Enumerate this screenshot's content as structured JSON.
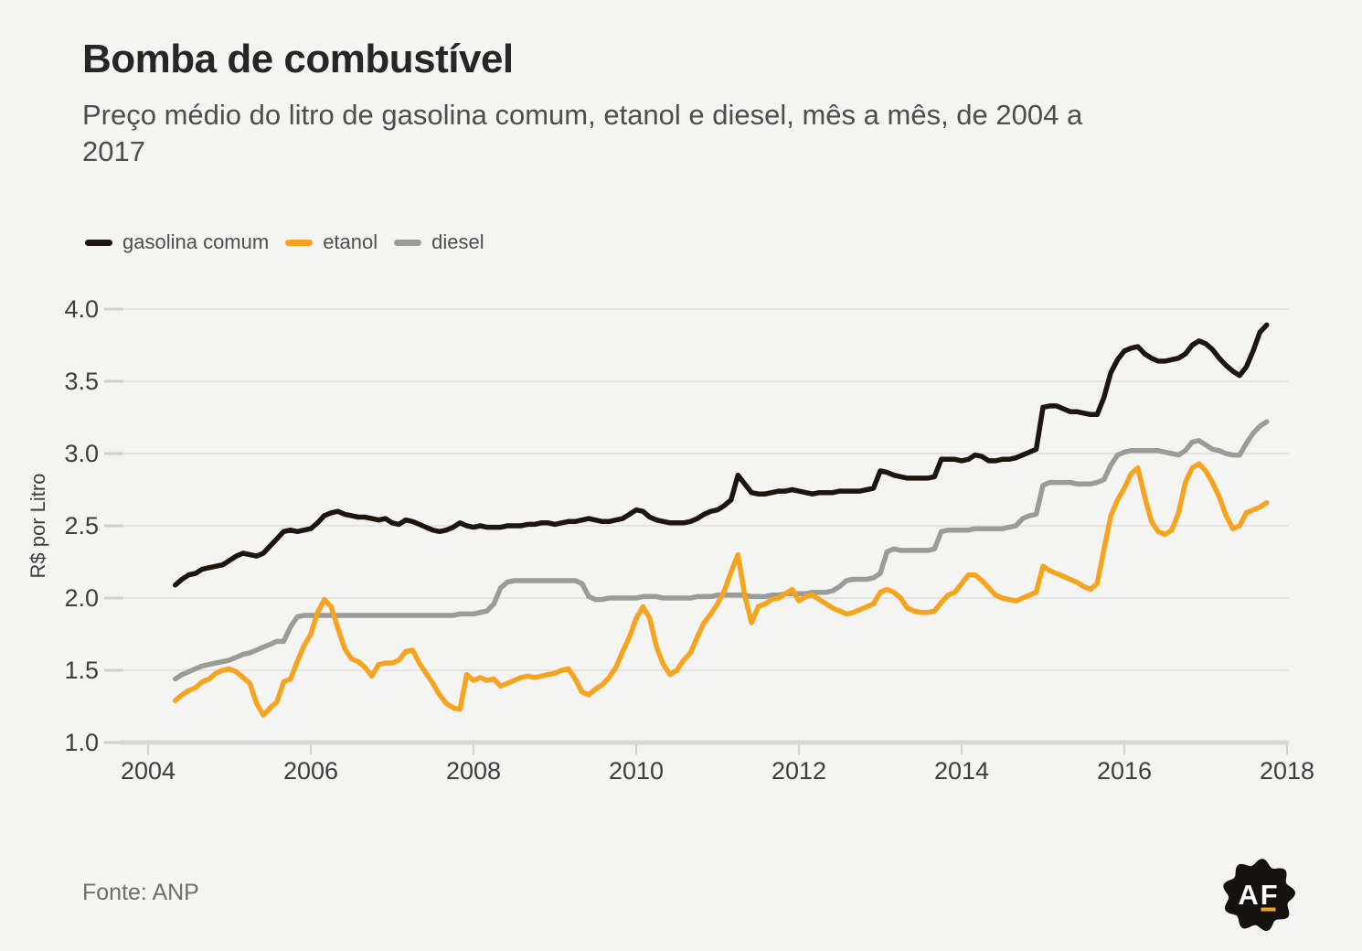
{
  "header": {
    "title": "Bomba de combustível",
    "subtitle": "Preço médio do litro de gasolina comum, etanol e diesel, mês a mês, de 2004 a 2017"
  },
  "legend": [
    {
      "label": "gasolina comum",
      "color": "#1c1510"
    },
    {
      "label": "etanol",
      "color": "#f6a41f"
    },
    {
      "label": "diesel",
      "color": "#9b9b99"
    }
  ],
  "footer": {
    "source": "Fonte: ANP",
    "logo_text": "AF",
    "logo_badge_color": "#16120f",
    "logo_accent_color": "#f6a41f"
  },
  "colors": {
    "background": "#f4f4f2",
    "gridline": "#e4e4e2",
    "axis": "#d8d8d6",
    "tick": "#cfcfcd",
    "tick_label": "#3e3e3e"
  },
  "chart_data": {
    "type": "line",
    "title": "Bomba de combustível",
    "xlabel": "",
    "ylabel": "R$ por Litro",
    "grid": true,
    "legend_position": "top-left",
    "ylim": [
      1.0,
      4.0
    ],
    "y_ticks": [
      1.0,
      1.5,
      2.0,
      2.5,
      3.0,
      3.5,
      4.0
    ],
    "x_ticks": [
      2004,
      2006,
      2008,
      2010,
      2012,
      2014,
      2016,
      2018
    ],
    "frequency": "monthly",
    "x_start_year": 2004,
    "x_start_month": 5,
    "series": [
      {
        "name": "gasolina comum",
        "color": "#1c1510",
        "values": [
          2.09,
          2.13,
          2.16,
          2.17,
          2.2,
          2.21,
          2.22,
          2.23,
          2.26,
          2.29,
          2.31,
          2.3,
          2.29,
          2.31,
          2.36,
          2.41,
          2.46,
          2.47,
          2.46,
          2.47,
          2.48,
          2.52,
          2.57,
          2.59,
          2.6,
          2.58,
          2.57,
          2.56,
          2.56,
          2.55,
          2.54,
          2.55,
          2.52,
          2.51,
          2.54,
          2.53,
          2.51,
          2.49,
          2.47,
          2.46,
          2.47,
          2.49,
          2.52,
          2.5,
          2.49,
          2.5,
          2.49,
          2.49,
          2.49,
          2.5,
          2.5,
          2.5,
          2.51,
          2.51,
          2.52,
          2.52,
          2.51,
          2.52,
          2.53,
          2.53,
          2.54,
          2.55,
          2.54,
          2.53,
          2.53,
          2.54,
          2.55,
          2.58,
          2.61,
          2.6,
          2.56,
          2.54,
          2.53,
          2.52,
          2.52,
          2.52,
          2.53,
          2.55,
          2.58,
          2.6,
          2.61,
          2.64,
          2.68,
          2.85,
          2.79,
          2.73,
          2.72,
          2.72,
          2.73,
          2.74,
          2.74,
          2.75,
          2.74,
          2.73,
          2.72,
          2.73,
          2.73,
          2.73,
          2.74,
          2.74,
          2.74,
          2.74,
          2.75,
          2.76,
          2.88,
          2.87,
          2.85,
          2.84,
          2.83,
          2.83,
          2.83,
          2.83,
          2.84,
          2.96,
          2.96,
          2.96,
          2.95,
          2.96,
          2.99,
          2.98,
          2.95,
          2.95,
          2.96,
          2.96,
          2.97,
          2.99,
          3.01,
          3.03,
          3.32,
          3.33,
          3.33,
          3.31,
          3.29,
          3.29,
          3.28,
          3.27,
          3.27,
          3.39,
          3.56,
          3.65,
          3.71,
          3.73,
          3.74,
          3.69,
          3.66,
          3.64,
          3.64,
          3.65,
          3.66,
          3.69,
          3.75,
          3.78,
          3.76,
          3.72,
          3.66,
          3.61,
          3.57,
          3.54,
          3.6,
          3.71,
          3.84,
          3.89
        ]
      },
      {
        "name": "etanol",
        "color": "#f6a41f",
        "values": [
          1.29,
          1.33,
          1.36,
          1.38,
          1.42,
          1.44,
          1.48,
          1.5,
          1.51,
          1.49,
          1.45,
          1.41,
          1.27,
          1.19,
          1.24,
          1.28,
          1.42,
          1.44,
          1.56,
          1.67,
          1.75,
          1.9,
          1.99,
          1.94,
          1.79,
          1.65,
          1.58,
          1.56,
          1.52,
          1.46,
          1.54,
          1.55,
          1.55,
          1.57,
          1.63,
          1.64,
          1.55,
          1.48,
          1.41,
          1.33,
          1.27,
          1.24,
          1.23,
          1.47,
          1.43,
          1.45,
          1.43,
          1.44,
          1.39,
          1.41,
          1.43,
          1.45,
          1.46,
          1.45,
          1.46,
          1.47,
          1.48,
          1.5,
          1.51,
          1.44,
          1.35,
          1.33,
          1.37,
          1.4,
          1.45,
          1.52,
          1.63,
          1.73,
          1.86,
          1.94,
          1.86,
          1.66,
          1.54,
          1.47,
          1.5,
          1.57,
          1.62,
          1.73,
          1.83,
          1.89,
          1.96,
          2.05,
          2.18,
          2.3,
          2.02,
          1.83,
          1.94,
          1.96,
          1.99,
          2.0,
          2.03,
          2.06,
          1.98,
          2.01,
          2.02,
          1.99,
          1.96,
          1.93,
          1.91,
          1.89,
          1.9,
          1.92,
          1.94,
          1.96,
          2.04,
          2.06,
          2.04,
          2.0,
          1.93,
          1.91,
          1.9,
          1.9,
          1.91,
          1.97,
          2.02,
          2.04,
          2.1,
          2.16,
          2.16,
          2.12,
          2.07,
          2.02,
          2.0,
          1.99,
          1.98,
          2.0,
          2.02,
          2.04,
          2.22,
          2.19,
          2.17,
          2.15,
          2.13,
          2.11,
          2.08,
          2.06,
          2.1,
          2.34,
          2.57,
          2.68,
          2.76,
          2.86,
          2.9,
          2.7,
          2.53,
          2.46,
          2.44,
          2.47,
          2.59,
          2.8,
          2.9,
          2.93,
          2.88,
          2.8,
          2.7,
          2.57,
          2.48,
          2.5,
          2.59,
          2.61,
          2.63,
          2.66
        ]
      },
      {
        "name": "diesel",
        "color": "#9b9b99",
        "values": [
          1.44,
          1.47,
          1.49,
          1.51,
          1.53,
          1.54,
          1.55,
          1.56,
          1.57,
          1.59,
          1.61,
          1.62,
          1.64,
          1.66,
          1.68,
          1.7,
          1.7,
          1.8,
          1.87,
          1.88,
          1.88,
          1.88,
          1.88,
          1.88,
          1.88,
          1.88,
          1.88,
          1.88,
          1.88,
          1.88,
          1.88,
          1.88,
          1.88,
          1.88,
          1.88,
          1.88,
          1.88,
          1.88,
          1.88,
          1.88,
          1.88,
          1.88,
          1.89,
          1.89,
          1.89,
          1.9,
          1.91,
          1.96,
          2.07,
          2.11,
          2.12,
          2.12,
          2.12,
          2.12,
          2.12,
          2.12,
          2.12,
          2.12,
          2.12,
          2.12,
          2.1,
          2.01,
          1.99,
          1.99,
          2.0,
          2.0,
          2.0,
          2.0,
          2.0,
          2.01,
          2.01,
          2.01,
          2.0,
          2.0,
          2.0,
          2.0,
          2.0,
          2.01,
          2.01,
          2.01,
          2.02,
          2.02,
          2.02,
          2.02,
          2.02,
          2.01,
          2.01,
          2.01,
          2.02,
          2.02,
          2.03,
          2.03,
          2.03,
          2.03,
          2.04,
          2.04,
          2.04,
          2.05,
          2.08,
          2.12,
          2.13,
          2.13,
          2.13,
          2.14,
          2.17,
          2.32,
          2.34,
          2.33,
          2.33,
          2.33,
          2.33,
          2.33,
          2.34,
          2.46,
          2.47,
          2.47,
          2.47,
          2.47,
          2.48,
          2.48,
          2.48,
          2.48,
          2.48,
          2.49,
          2.5,
          2.55,
          2.57,
          2.58,
          2.78,
          2.8,
          2.8,
          2.8,
          2.8,
          2.79,
          2.79,
          2.79,
          2.8,
          2.82,
          2.92,
          2.99,
          3.01,
          3.02,
          3.02,
          3.02,
          3.02,
          3.02,
          3.01,
          3.0,
          2.99,
          3.02,
          3.08,
          3.09,
          3.06,
          3.03,
          3.02,
          3.0,
          2.99,
          2.99,
          3.07,
          3.14,
          3.19,
          3.22
        ]
      }
    ]
  }
}
